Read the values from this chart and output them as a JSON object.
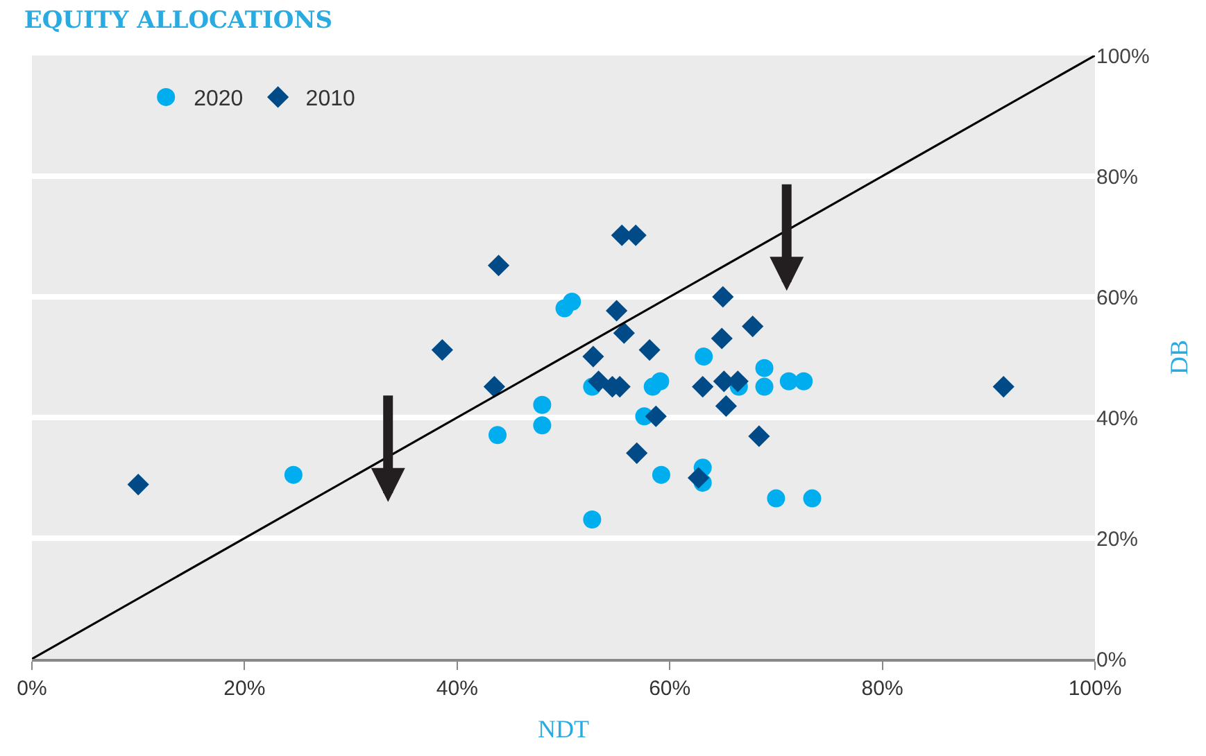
{
  "chart_data": {
    "type": "scatter",
    "title": "EQUITY ALLOCATIONS",
    "xlabel": "NDT",
    "ylabel": "DB",
    "series": [
      {
        "name": "2020",
        "color": "#00aeef",
        "marker": "circle",
        "x": [
          24.6,
          43.8,
          48.0,
          48.0,
          50.1,
          50.8,
          52.7,
          52.7,
          57.6,
          58.4,
          59.1,
          59.2,
          63.2,
          63.1,
          63.1,
          66.5,
          68.9,
          68.9,
          70.0,
          71.2,
          72.6,
          73.4
        ],
        "values": [
          30.5,
          37.1,
          42.1,
          38.7,
          58.1,
          59.2,
          45.1,
          23.1,
          40.2,
          45.1,
          46.0,
          30.5,
          50.1,
          31.7,
          29.2,
          45.1,
          45.1,
          48.2,
          26.6,
          46.0,
          46.0,
          26.6
        ]
      },
      {
        "name": "2010",
        "color": "#004b87",
        "marker": "diamond",
        "x": [
          10.0,
          38.6,
          43.9,
          43.5,
          55.0,
          55.5,
          56.8,
          52.8,
          55.7,
          58.1,
          53.3,
          54.6,
          55.3,
          58.7,
          56.9,
          62.7,
          63.1,
          65.0,
          64.9,
          67.8,
          65.3,
          65.1,
          66.4,
          68.4,
          91.4
        ],
        "values": [
          28.9,
          51.2,
          65.2,
          45.1,
          57.7,
          70.2,
          70.2,
          50.1,
          54.0,
          51.2,
          46.0,
          45.1,
          45.1,
          40.2,
          34.1,
          30.0,
          45.1,
          60.0,
          53.1,
          55.1,
          41.9,
          46.0,
          46.0,
          36.9,
          45.1
        ]
      },
      {
        "type": "line",
        "color": "#000000",
        "marker": "none",
        "x": [
          0,
          100
        ],
        "values": [
          0,
          100
        ]
      }
    ],
    "xlim": [
      0,
      100
    ],
    "ylim": [
      0,
      100
    ],
    "xticks": [
      {
        "value": 0,
        "label": "0%"
      },
      {
        "value": 20,
        "label": "20%"
      },
      {
        "value": 40,
        "label": "40%"
      },
      {
        "value": 60,
        "label": "60%"
      },
      {
        "value": 80,
        "label": "80%"
      },
      {
        "value": 100,
        "label": "100%"
      }
    ],
    "yticks": [
      {
        "value": 0,
        "label": "0%"
      },
      {
        "value": 20,
        "label": "20%"
      },
      {
        "value": 40,
        "label": "40%"
      },
      {
        "value": 60,
        "label": "60%"
      },
      {
        "value": 80,
        "label": "80%"
      },
      {
        "value": 100,
        "label": "100%"
      }
    ],
    "grid": "y",
    "legend": "top left"
  }
}
